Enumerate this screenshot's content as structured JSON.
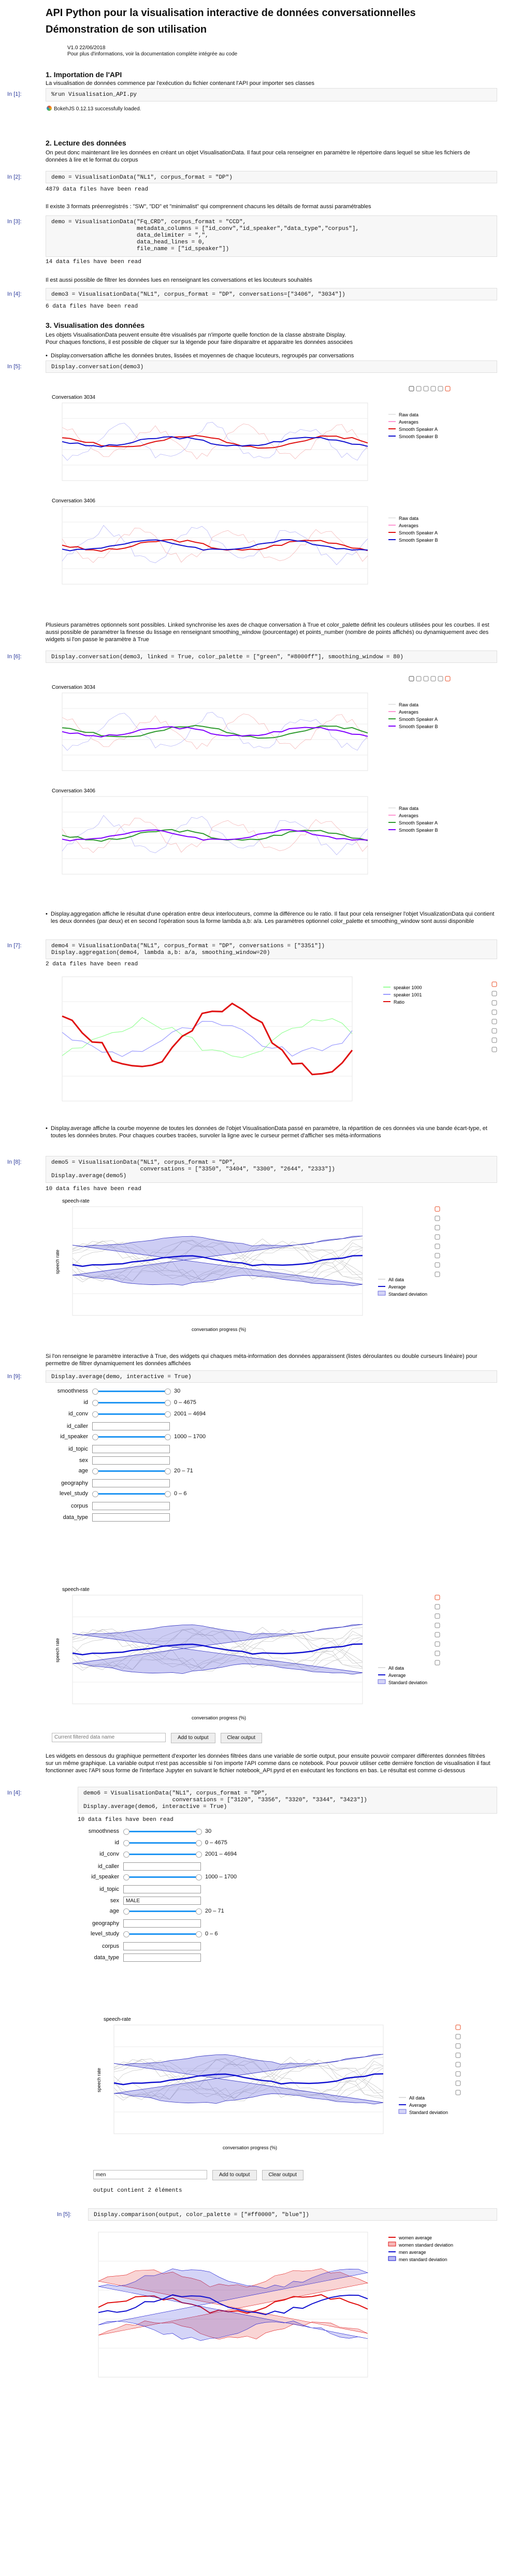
{
  "page": {
    "title": "API Python pour la visualisation interactive de données conversationnelles",
    "subtitle": "Démonstration de son utilisation",
    "version": "V1.0 22/06/2018",
    "doc_note": "Pour plus d'informations, voir la documentation complète intégrée au code"
  },
  "sec1": {
    "title": "1. Importation de l'API",
    "text": "La visualisation de données commence par l'exécution du fichier contenant l'API pour importer ses classes",
    "prompt": "In [1]:",
    "code": "%run Visualisation_API.py",
    "out": "BokehJS 0.12.13 successfully loaded."
  },
  "sec2": {
    "title": "2. Lecture des données",
    "text": "On peut donc maintenant lire les données en créant un objet VisualisationData. Il faut pour cela renseigner en paramètre le répertoire dans lequel se situe les fichiers de données à lire et le format du corpus",
    "c2_prompt": "In [2]:",
    "c2_code": "demo = VisualisationData(\"NL1\", corpus_format = \"DP\")",
    "c2_out": "4879 data files have been read",
    "text2": "Il existe 3 formats préenregistrés : \"SW\", \"DD\" et \"minimalist\" qui comprennent chacuns les détails de format aussi paramétrables",
    "c3_prompt": "In [3]:",
    "c3_code": "demo = VisualisationData(\"Fq_CRD\", corpus_format = \"CCD\",\n                         metadata_columns = [\"id_conv\",\"id_speaker\",\"data_type\",\"corpus\"],\n                         data_delimiter = \",\",\n                         data_head_lines = 0,\n                         file_name = [\"id_speaker\"])",
    "c3_out": "14 data files have been read",
    "text3": "Il est aussi possible de filtrer les données lues en renseignant les conversations et les locuteurs souhaités",
    "c4_prompt": "In [4]:",
    "c4_code": "demo3 = VisualisationData(\"NL1\", corpus_format = \"DP\", conversations=[\"3406\", \"3034\"])",
    "c4_out": "6 data files have been read"
  },
  "sec3": {
    "title": "3. Visualisation des données",
    "text": "Les objets VisualisationData peuvent ensuite être visualisés par n'importe quelle fonction de la classe abstraite Display.\nPour chaques fonctions, il est possible de cliquer sur la légende pour faire disparaitre et apparaitre les données associées",
    "b1": "Display.conversation affiche les données brutes, lissées et moyennes de chaque locuteurs, regroupés par conversations",
    "c5_prompt": "In [5]:",
    "c5_code": "Display.conversation(demo3)",
    "conv1_title": "Conversation 3034",
    "conv2_title": "Conversation 3406",
    "legend_raw": "Raw data",
    "legend_avg": "Averages",
    "legend_sa": "Smooth Speaker A",
    "legend_sb": "Smooth Speaker B",
    "text_params": "Plusieurs paramètres optionnels sont possibles. Linked synchronise les axes de chaque conversation à True et color_palette définit les couleurs utilisées pour les courbes. Il est aussi possible de paramétrer la finesse du lissage en renseignant smoothing_window (pourcentage) et points_number (nombre de points affichés) ou dynamiquement avec des widgets si l'on passe le paramètre à True",
    "c6_prompt": "In [6]:",
    "c6_code": "Display.conversation(demo3, linked = True, color_palette = [\"green\", \"#8000ff\"], smoothing_window = 80)",
    "b2": "Display.aggregation affiche le résultat d'une opération entre deux interlocuteurs, comme la différence ou le ratio. Il faut pour cela renseigner l'objet VisualizationData qui contient les deux données (par deux) et en second l'opération sous la forme lambda a,b: a/a. Les paramètres optionnel color_palette et smoothing_window sont aussi disponible",
    "c7_prompt": "In [7]:",
    "c7_code": "demo4 = VisualisationData(\"NL1\", corpus_format = \"DP\", conversations = [\"3351\"])\nDisplay.aggregation(demo4, lambda a,b: a/a, smoothing_window=20)",
    "c7_out": "2 data files have been read",
    "agg_legend1": "speaker 1000",
    "agg_legend2": "speaker 1001",
    "agg_legend3": "Ratio",
    "b3": "Display.average affiche la courbe moyenne de toutes les données de l'objet VisualisationData passé en paramètre, la répartition de ces données via une bande écart-type, et toutes les données brutes. Pour chaques courbes tracées, survoler la ligne avec le curseur permet d'afficher ses méta-informations",
    "c8_prompt": "In [8]:",
    "c8_code": "demo5 = VisualisationData(\"NL1\", corpus_format = \"DP\",\n                          conversations = [\"3350\", \"3404\", \"3300\", \"2644\", \"2333\"])\nDisplay.average(demo5)",
    "c8_out": "10 data files have been read",
    "avg_title": "speech-rate",
    "avg_xlabel": "conversation progress (%)",
    "avg_ylabel": "speech rate",
    "avg_leg_all": "All data",
    "avg_leg_avg": "Average",
    "avg_leg_std": "Standard deviation",
    "text_interactive": "Si l'on renseigne le paramètre interactive à True, des widgets qui chaques méta-information des données apparaissent (listes déroulantes ou double curseurs linéaire) pour permettre de filtrer dynamiquement les données affichées",
    "c9_prompt": "In [9]:",
    "c9_code": "Display.average(demo, interactive = True)",
    "widgets": [
      {
        "label": "smoothness",
        "type": "slider",
        "value": "30"
      },
      {
        "label": "id",
        "type": "slider",
        "value": "0 – 4675"
      },
      {
        "label": "id_conv",
        "type": "slider",
        "value": "2001 – 4694"
      },
      {
        "label": "id_caller",
        "type": "select",
        "value": ""
      },
      {
        "label": "id_speaker",
        "type": "slider",
        "value": "1000 – 1700"
      },
      {
        "label": "id_topic",
        "type": "select",
        "value": ""
      },
      {
        "label": "sex",
        "type": "select",
        "value": ""
      },
      {
        "label": "age",
        "type": "slider",
        "value": "20 – 71"
      },
      {
        "label": "geography",
        "type": "select",
        "value": ""
      },
      {
        "label": "level_study",
        "type": "slider",
        "value": "0 – 6"
      },
      {
        "label": "corpus",
        "type": "select",
        "value": ""
      },
      {
        "label": "data_type",
        "type": "select",
        "value": ""
      }
    ],
    "filter_placeholder": "Current filtered data name",
    "btn_add": "Add to output",
    "btn_clear": "Clear output",
    "text_output": "Les widgets en dessous du graphique permettent d'exporter les données filtrées dans une variable de sortie output, pour ensuite pouvoir comparer différentes données filtrées sur un même graphique. La variable output n'est pas accessible si l'on importe l'API comme dans ce notebook. Pour pouvoir utiliser cette dernière fonction de visualisation il faut fonctionner avec l'API sous forme de l'interface Jupyter en suivant le fichier notebook_API.pyrd et en exécutant les fonctions en bas. Le résultat est comme ci-dessous",
    "c10_prompt": "In [4]:",
    "c10_code": "demo6 = VisualisationData(\"NL1\", corpus_format = \"DP\",\n                          conversations = [\"3120\", \"3356\", \"3320\", \"3344\", \"3423\"])\nDisplay.average(demo6, interactive = True)",
    "c10_out": "10 data files have been read",
    "widgets2": [
      {
        "label": "smoothness",
        "type": "slider",
        "value": "30"
      },
      {
        "label": "id",
        "type": "slider",
        "value": "0 – 4675"
      },
      {
        "label": "id_conv",
        "type": "slider",
        "value": "2001 – 4694"
      },
      {
        "label": "id_caller",
        "type": "select",
        "value": ""
      },
      {
        "label": "id_speaker",
        "type": "slider",
        "value": "1000 – 1700"
      },
      {
        "label": "id_topic",
        "type": "select",
        "value": ""
      },
      {
        "label": "sex",
        "type": "select",
        "value": "MALE"
      },
      {
        "label": "age",
        "type": "slider",
        "value": "20 – 71"
      },
      {
        "label": "geography",
        "type": "select",
        "value": ""
      },
      {
        "label": "level_study",
        "type": "slider",
        "value": "0 – 6"
      },
      {
        "label": "corpus",
        "type": "select",
        "value": ""
      },
      {
        "label": "data_type",
        "type": "select",
        "value": ""
      }
    ],
    "filter_value": "men",
    "output_text": "output contient 2 éléments",
    "c11_prompt": "In [5]:",
    "c11_code": "Display.comparison(output, color_palette = [\"#ff0000\", \"blue\"])",
    "cmp_leg1": "women average",
    "cmp_leg2": "women standard deviation",
    "cmp_leg3": "men average",
    "cmp_leg4": "men standard deviation"
  },
  "colors": {
    "accent": "#303f9f",
    "red": "#e01010",
    "blue": "#1010d0",
    "green": "#2e9a2e",
    "purple": "#8000ff"
  }
}
